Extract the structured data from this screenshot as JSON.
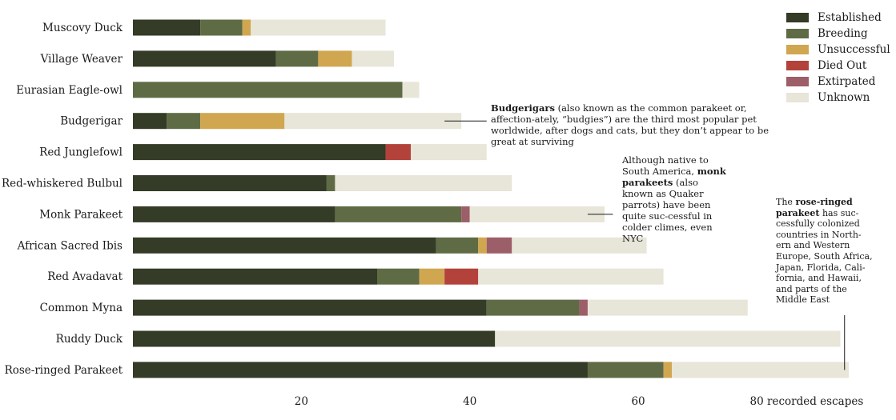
{
  "chart_data": {
    "type": "bar",
    "orientation": "horizontal",
    "stacked": true,
    "categories": [
      "Muscovy Duck",
      "Village Weaver",
      "Eurasian Eagle-owl",
      "Budgerigar",
      "Red Junglefowl",
      "Red-whiskered Bulbul",
      "Monk Parakeet",
      "African Sacred Ibis",
      "Red Avadavat",
      "Common Myna",
      "Ruddy Duck",
      "Rose-ringed Parakeet"
    ],
    "series": [
      {
        "name": "Established",
        "color": "#343b26",
        "values": [
          8,
          17,
          0,
          4,
          30,
          23,
          24,
          36,
          29,
          42,
          43,
          54
        ]
      },
      {
        "name": "Breeding",
        "color": "#5f6b45",
        "values": [
          5,
          5,
          32,
          4,
          0,
          1,
          15,
          5,
          5,
          11,
          0,
          9
        ]
      },
      {
        "name": "Unsuccessful",
        "color": "#d0a650",
        "values": [
          1,
          4,
          0,
          10,
          0,
          0,
          0,
          1,
          3,
          0,
          0,
          1
        ]
      },
      {
        "name": "Died Out",
        "color": "#b3423b",
        "values": [
          0,
          0,
          0,
          0,
          3,
          0,
          0,
          0,
          4,
          0,
          0,
          0
        ]
      },
      {
        "name": "Extirpated",
        "color": "#9c5e68",
        "values": [
          0,
          0,
          0,
          0,
          0,
          0,
          1,
          3,
          0,
          1,
          0,
          0
        ]
      },
      {
        "name": "Unknown",
        "color": "#e8e5d9",
        "values": [
          16,
          5,
          2,
          21,
          9,
          21,
          16,
          16,
          22,
          19,
          41,
          21
        ]
      }
    ],
    "xlim": [
      0,
      85
    ],
    "xticks": [
      20,
      40,
      60,
      80
    ],
    "xtick_labels": [
      "20",
      "40",
      "60",
      "80 recorded escapes"
    ],
    "legend_position": "top-right",
    "grid": false
  },
  "annotations": {
    "budgerigar": {
      "bold": "Budgerigars",
      "text": " (also known as the common parakeet or, affection-ately, “budgies”) are the third most popular pet worldwide, after dogs and cats, but they don’t appear to be great at surviving"
    },
    "monk": {
      "pre": "Although native to South America, ",
      "bold": "monk parakeets",
      "post": " (also known as Quaker parrots) have been quite suc-cessful in colder climes, even NYC"
    },
    "rose": {
      "pre": "The ",
      "bold": "rose-ringed parakeet",
      "post": " has suc-cessfully colonized countries in North-ern and Western Europe, South Africa, Japan, Florida, Cali-fornia, and Hawaii, and parts of the Middle East"
    }
  }
}
